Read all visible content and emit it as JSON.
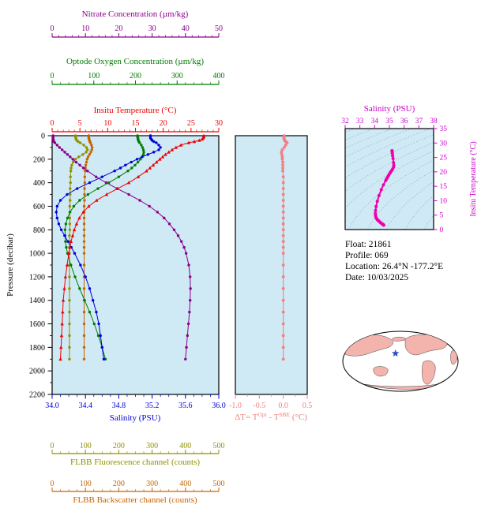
{
  "colors": {
    "nitrate": "#8b008b",
    "oxygen": "#007d00",
    "temperature": "#ee0000",
    "salinity": "#0000dd",
    "fluorescence": "#909000",
    "backscatter": "#c86400",
    "delta": "#f08080",
    "ts_curve": "#ee00aa",
    "ts_text": "#cc00cc",
    "plot_background": "#cfe9f5",
    "contour": "#8fb2c0",
    "land": "#f4b4ae",
    "star": "#2b50c8"
  },
  "info": {
    "lines": [
      "Float: 21861",
      "Profile: 069",
      "Location: 26.4°N -177.2°E",
      "Date: 10/03/2025"
    ]
  },
  "main_plot": {
    "pressure_axis": {
      "label": "Pressure (decibar)",
      "ticks": [
        "0",
        "200",
        "400",
        "600",
        "800",
        "1000",
        "1200",
        "1400",
        "1600",
        "1800",
        "2000",
        "2200"
      ]
    },
    "salinity_axis": {
      "title": "Salinity (PSU)",
      "xlim": [
        34.0,
        36.0
      ],
      "ticks": [
        "34.0",
        "34.4",
        "34.8",
        "35.2",
        "35.6",
        "36.0"
      ]
    },
    "top_axes": [
      {
        "id": "nitrate",
        "title": "Nitrate Concentration (µm/kg)",
        "xlim": [
          0,
          50
        ],
        "ticks": [
          "0",
          "10",
          "20",
          "30",
          "40",
          "50"
        ],
        "minor_step": 2
      },
      {
        "id": "oxygen",
        "title": "Optode Oxygen Concentration (µm/kg)",
        "xlim": [
          0,
          400
        ],
        "ticks": [
          "0",
          "100",
          "200",
          "300",
          "400"
        ],
        "minor_step": 20
      },
      {
        "id": "temperature",
        "title": "Insitu Temperature (°C)",
        "xlim": [
          0,
          30
        ],
        "ticks": [
          "0",
          "5",
          "10",
          "15",
          "20",
          "25",
          "30"
        ],
        "minor_step": 1
      }
    ],
    "bottom_axes": [
      {
        "id": "fluorescence",
        "title": "FLBB Fluorescence channel (counts)",
        "xlim": [
          0,
          500
        ],
        "ticks": [
          "0",
          "100",
          "200",
          "300",
          "400",
          "500"
        ],
        "minor_step": 25
      },
      {
        "id": "backscatter",
        "title": "FLBB Backscatter channel (counts)",
        "xlim": [
          0,
          500
        ],
        "ticks": [
          "0",
          "100",
          "200",
          "300",
          "400",
          "500"
        ],
        "minor_step": 25
      }
    ]
  },
  "delta_plot": {
    "x_ticks": [
      "-1.0",
      "-0.5",
      "0.0",
      "0.5"
    ],
    "title_parts": {
      "pre": "ΔT= T",
      "sup1": "Opt",
      "mid": " - T",
      "sup2": "SBE",
      "post": " (°C)"
    }
  },
  "ts_plot": {
    "title": "Salinity (PSU)",
    "right_label": "Insitu Temperature (°C)",
    "sal_ticks": [
      "32",
      "33",
      "34",
      "35",
      "36",
      "37",
      "38"
    ],
    "temp_ticks": [
      "0",
      "5",
      "10",
      "15",
      "20",
      "25",
      "30",
      "35"
    ]
  },
  "chart_data": {
    "type": "line",
    "ylabel": "Pressure (decibar)",
    "ylim": [
      0,
      2200
    ],
    "pressure_dbar": [
      0,
      10,
      20,
      30,
      40,
      50,
      60,
      80,
      100,
      120,
      140,
      160,
      180,
      200,
      225,
      250,
      275,
      300,
      350,
      400,
      450,
      500,
      550,
      600,
      650,
      700,
      750,
      800,
      850,
      900,
      950,
      1000,
      1100,
      1200,
      1300,
      1400,
      1500,
      1600,
      1700,
      1800,
      1900
    ],
    "profiles": [
      {
        "name": "Insitu Temperature (°C)",
        "color_key": "temperature",
        "xlim": [
          0,
          30
        ],
        "marker": "triangle",
        "values": [
          27.3,
          27.3,
          27.2,
          27.0,
          26.5,
          25.6,
          24.6,
          23.2,
          22.3,
          21.6,
          21.0,
          20.4,
          19.9,
          19.4,
          18.8,
          18.2,
          17.6,
          17.0,
          15.5,
          13.8,
          11.8,
          9.8,
          8.0,
          6.6,
          5.6,
          4.9,
          4.4,
          4.0,
          3.7,
          3.4,
          3.2,
          3.0,
          2.7,
          2.4,
          2.2,
          2.0,
          1.9,
          1.8,
          1.7,
          1.6,
          1.5
        ]
      },
      {
        "name": "Salinity (PSU)",
        "color_key": "salinity",
        "xlim": [
          34,
          36
        ],
        "marker": "circle",
        "values": [
          35.18,
          35.18,
          35.18,
          35.19,
          35.2,
          35.22,
          35.25,
          35.28,
          35.3,
          35.28,
          35.22,
          35.15,
          35.08,
          35.02,
          34.95,
          34.88,
          34.82,
          34.75,
          34.6,
          34.45,
          34.3,
          34.18,
          34.1,
          34.06,
          34.05,
          34.06,
          34.08,
          34.11,
          34.15,
          34.19,
          34.23,
          34.27,
          34.34,
          34.4,
          34.45,
          34.49,
          34.53,
          34.56,
          34.58,
          34.6,
          34.62
        ]
      },
      {
        "name": "Optode Oxygen Concentration (µm/kg)",
        "color_key": "oxygen",
        "xlim": [
          0,
          400
        ],
        "marker": "circle",
        "values": [
          205,
          205,
          206,
          206,
          207,
          208,
          210,
          214,
          217,
          219,
          220,
          219,
          216,
          212,
          206,
          199,
          191,
          182,
          160,
          136,
          110,
          86,
          66,
          52,
          43,
          37,
          33,
          31,
          31,
          32,
          34,
          37,
          45,
          55,
          66,
          78,
          90,
          101,
          111,
          120,
          128
        ]
      },
      {
        "name": "Nitrate Concentration (µm/kg)",
        "color_key": "nitrate",
        "xlim": [
          0,
          50
        ],
        "marker": "circle",
        "values": [
          0.3,
          0.3,
          0.3,
          0.3,
          0.4,
          0.5,
          0.8,
          1.5,
          2.2,
          3.0,
          3.8,
          4.6,
          5.4,
          6.2,
          7.2,
          8.3,
          9.4,
          10.6,
          13.2,
          16.2,
          19.5,
          23.0,
          26.3,
          29.2,
          31.6,
          33.6,
          35.2,
          36.6,
          37.8,
          38.8,
          39.6,
          40.2,
          41.0,
          41.4,
          41.5,
          41.4,
          41.2,
          40.9,
          40.6,
          40.3,
          40.0
        ]
      },
      {
        "name": "FLBB Fluorescence channel (counts)",
        "color_key": "fluorescence",
        "xlim": [
          0,
          500
        ],
        "marker": "circle",
        "values": [
          70,
          70,
          71,
          72,
          74,
          78,
          84,
          95,
          103,
          106,
          102,
          92,
          80,
          70,
          63,
          59,
          57,
          56,
          55,
          55,
          54,
          54,
          54,
          53,
          53,
          53,
          53,
          53,
          52,
          52,
          52,
          52,
          52,
          52,
          52,
          52,
          52,
          52,
          52,
          52,
          52
        ]
      },
      {
        "name": "FLBB Backscatter channel (counts)",
        "color_key": "backscatter",
        "xlim": [
          0,
          500
        ],
        "marker": "circle",
        "values": [
          110,
          110,
          110,
          111,
          112,
          113,
          115,
          118,
          120,
          119,
          116,
          112,
          108,
          105,
          103,
          101,
          100,
          99,
          98,
          98,
          97,
          97,
          97,
          96,
          96,
          96,
          96,
          96,
          96,
          96,
          96,
          96,
          96,
          96,
          96,
          96,
          96,
          96,
          96,
          96,
          96
        ]
      }
    ],
    "delta_T": {
      "name": "ΔT = T_Opt - T_SBE (°C)",
      "xlim": [
        -1.0,
        0.5
      ],
      "values": [
        0.02,
        0.02,
        0.01,
        0.02,
        0.03,
        0.05,
        0.08,
        0.05,
        0.02,
        -0.02,
        -0.04,
        -0.03,
        -0.02,
        -0.02,
        -0.01,
        -0.01,
        -0.01,
        -0.01,
        0.0,
        0.0,
        0.0,
        0.0,
        0.0,
        0.0,
        0.0,
        0.0,
        0.0,
        0.0,
        0.0,
        0.0,
        0.0,
        0.0,
        0.0,
        0.0,
        0.0,
        0.0,
        0.0,
        0.0,
        0.0,
        0.0,
        0.0
      ]
    },
    "ts_diagram": {
      "xlim": [
        32,
        38
      ],
      "ylim": [
        0,
        35
      ],
      "salinity_from": "Salinity (PSU)",
      "temperature_from": "Insitu Temperature (°C)",
      "sigma_contours": [
        18,
        19,
        20,
        21,
        22,
        23,
        24,
        25,
        26,
        27,
        28,
        29,
        30
      ]
    },
    "float_location": {
      "lat_deg": 26.4,
      "lon_deg": -177.2
    }
  }
}
